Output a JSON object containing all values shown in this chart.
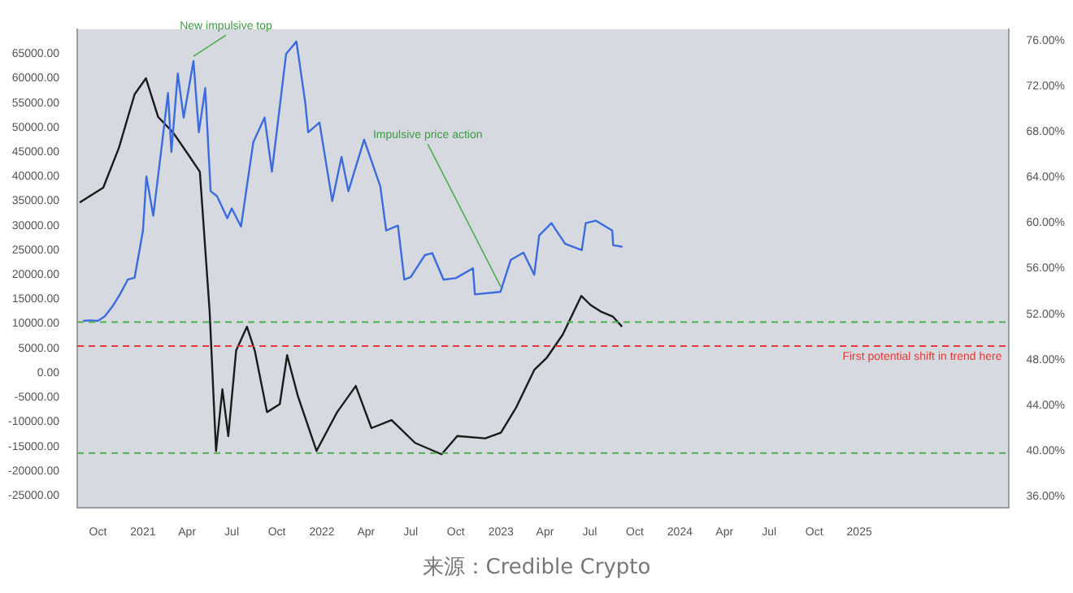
{
  "chart_data": {
    "type": "line",
    "marker": "none",
    "line_style": "solid",
    "grid": false,
    "xlim": [
      "2020-08-20",
      "2025-11-01"
    ],
    "xticks": [
      {
        "value": "2020-10-01",
        "label": "Oct"
      },
      {
        "value": "2021-01-01",
        "label": "2021"
      },
      {
        "value": "2021-04-01",
        "label": "Apr"
      },
      {
        "value": "2021-07-01",
        "label": "Jul"
      },
      {
        "value": "2021-10-01",
        "label": "Oct"
      },
      {
        "value": "2022-01-01",
        "label": "2022"
      },
      {
        "value": "2022-04-01",
        "label": "Apr"
      },
      {
        "value": "2022-07-01",
        "label": "Jul"
      },
      {
        "value": "2022-10-01",
        "label": "Oct"
      },
      {
        "value": "2023-01-01",
        "label": "2023"
      },
      {
        "value": "2023-04-01",
        "label": "Apr"
      },
      {
        "value": "2023-07-01",
        "label": "Jul"
      },
      {
        "value": "2023-10-01",
        "label": "Oct"
      },
      {
        "value": "2024-01-01",
        "label": "2024"
      },
      {
        "value": "2024-04-01",
        "label": "Apr"
      },
      {
        "value": "2024-07-01",
        "label": "Jul"
      },
      {
        "value": "2024-10-01",
        "label": "Oct"
      },
      {
        "value": "2025-01-01",
        "label": "2025"
      }
    ],
    "ylim": [
      -27500,
      70000
    ],
    "yticks": [
      {
        "value": -25000,
        "label": "-25000.00"
      },
      {
        "value": -20000,
        "label": "-20000.00"
      },
      {
        "value": -15000,
        "label": "-15000.00"
      },
      {
        "value": -10000,
        "label": "-10000.00"
      },
      {
        "value": -5000,
        "label": "-5000.00"
      },
      {
        "value": 0,
        "label": "0.00"
      },
      {
        "value": 5000,
        "label": "5000.00"
      },
      {
        "value": 10000,
        "label": "10000.00"
      },
      {
        "value": 15000,
        "label": "15000.00"
      },
      {
        "value": 20000,
        "label": "20000.00"
      },
      {
        "value": 25000,
        "label": "25000.00"
      },
      {
        "value": 30000,
        "label": "30000.00"
      },
      {
        "value": 35000,
        "label": "35000.00"
      },
      {
        "value": 40000,
        "label": "40000.00"
      },
      {
        "value": 45000,
        "label": "45000.00"
      },
      {
        "value": 50000,
        "label": "50000.00"
      },
      {
        "value": 55000,
        "label": "55000.00"
      },
      {
        "value": 60000,
        "label": "60000.00"
      },
      {
        "value": 65000,
        "label": "65000.00"
      }
    ],
    "y2lim": [
      35,
      77
    ],
    "y2ticks": [
      {
        "value": 36,
        "label": "36.00%"
      },
      {
        "value": 40,
        "label": "40.00%"
      },
      {
        "value": 44,
        "label": "44.00%"
      },
      {
        "value": 48,
        "label": "48.00%"
      },
      {
        "value": 52,
        "label": "52.00%"
      },
      {
        "value": 56,
        "label": "56.00%"
      },
      {
        "value": 60,
        "label": "60.00%"
      },
      {
        "value": 64,
        "label": "64.00%"
      },
      {
        "value": 68,
        "label": "68.00%"
      },
      {
        "value": 72,
        "label": "72.00%"
      },
      {
        "value": 76,
        "label": "76.00%"
      }
    ],
    "series": [
      {
        "type": "line",
        "color": "#3b6be0",
        "x": [
          "2020-09-01",
          "2020-09-15",
          "2020-10-01",
          "2020-10-15",
          "2020-11-01",
          "2020-11-15",
          "2020-12-01",
          "2020-12-15",
          "2021-01-01",
          "2021-01-08",
          "2021-01-22",
          "2021-02-08",
          "2021-02-21",
          "2021-02-28",
          "2021-03-13",
          "2021-03-25",
          "2021-04-14",
          "2021-04-25",
          "2021-05-08",
          "2021-05-19",
          "2021-06-01",
          "2021-06-22",
          "2021-07-01",
          "2021-07-20",
          "2021-08-14",
          "2021-09-06",
          "2021-09-21",
          "2021-10-20",
          "2021-11-10",
          "2021-11-28",
          "2021-12-04",
          "2021-12-27",
          "2022-01-22",
          "2022-02-10",
          "2022-02-24",
          "2022-03-28",
          "2022-04-30",
          "2022-05-12",
          "2022-06-05",
          "2022-06-18",
          "2022-07-01",
          "2022-07-30",
          "2022-08-14",
          "2022-09-06",
          "2022-10-01",
          "2022-11-05",
          "2022-11-09",
          "2022-12-31",
          "2023-01-21",
          "2023-02-16",
          "2023-03-10",
          "2023-03-20",
          "2023-04-14",
          "2023-05-12",
          "2023-06-15",
          "2023-06-23",
          "2023-07-14",
          "2023-08-16",
          "2023-08-18",
          "2023-09-06"
        ],
        "values": [
          10600,
          10700,
          10600,
          11500,
          13700,
          16000,
          19000,
          19400,
          29000,
          40000,
          32000,
          46000,
          57000,
          45000,
          61000,
          52000,
          63500,
          49000,
          58000,
          37000,
          36000,
          31500,
          33500,
          29800,
          47000,
          52000,
          41000,
          65000,
          67500,
          55000,
          49000,
          51000,
          35000,
          44000,
          37000,
          47500,
          38000,
          29000,
          30000,
          19000,
          19500,
          24000,
          24400,
          19000,
          19300,
          21300,
          16000,
          16500,
          23000,
          24500,
          20000,
          28000,
          30500,
          26300,
          25000,
          30500,
          31000,
          29000,
          26000,
          25700
        ]
      },
      {
        "type": "line",
        "axis": "y2",
        "color": "#1a1a1a",
        "x": [
          "2020-08-25",
          "2020-10-12",
          "2020-11-13",
          "2020-12-15",
          "2021-01-07",
          "2021-02-01",
          "2021-03-04",
          "2021-04-05",
          "2021-04-27",
          "2021-05-17",
          "2021-05-30",
          "2021-06-12",
          "2021-06-24",
          "2021-07-10",
          "2021-08-01",
          "2021-08-17",
          "2021-09-11",
          "2021-10-07",
          "2021-10-22",
          "2021-11-13",
          "2021-12-21",
          "2022-02-01",
          "2022-03-11",
          "2022-04-12",
          "2022-05-23",
          "2022-07-10",
          "2022-09-02",
          "2022-10-04",
          "2022-11-30",
          "2023-01-01",
          "2023-02-01",
          "2023-03-10",
          "2023-04-05",
          "2023-05-07",
          "2023-06-14",
          "2023-07-03",
          "2023-07-25",
          "2023-08-17",
          "2023-09-05"
        ],
        "values": [
          61.8,
          63.1,
          66.6,
          71.3,
          72.7,
          69.3,
          67.9,
          65.9,
          64.5,
          52.2,
          40.0,
          45.4,
          41.3,
          48.8,
          50.9,
          48.8,
          43.4,
          44.1,
          48.4,
          44.8,
          40.0,
          43.4,
          45.7,
          42.0,
          42.7,
          40.7,
          39.7,
          41.3,
          41.1,
          41.6,
          43.8,
          47.1,
          48.2,
          50.2,
          53.6,
          52.8,
          52.2,
          51.8,
          50.9
        ]
      }
    ],
    "ref_lines": [
      {
        "axis": "y2",
        "value": 51.3,
        "color": "#4caf50",
        "line_style": "dashed"
      },
      {
        "axis": "y2",
        "value": 49.2,
        "color": "#e53935",
        "line_style": "dashed",
        "label": "First potential shift in trend here"
      },
      {
        "axis": "y2",
        "value": 39.8,
        "color": "#4caf50",
        "line_style": "dashed"
      }
    ],
    "annotations": [
      {
        "text": "New impulsive top",
        "x": "2021-04-14",
        "y": 63500
      },
      {
        "text": "Impulsive price action",
        "x": "2023-01-01",
        "y": 16500
      },
      "来源：Credible Crypto"
    ]
  }
}
